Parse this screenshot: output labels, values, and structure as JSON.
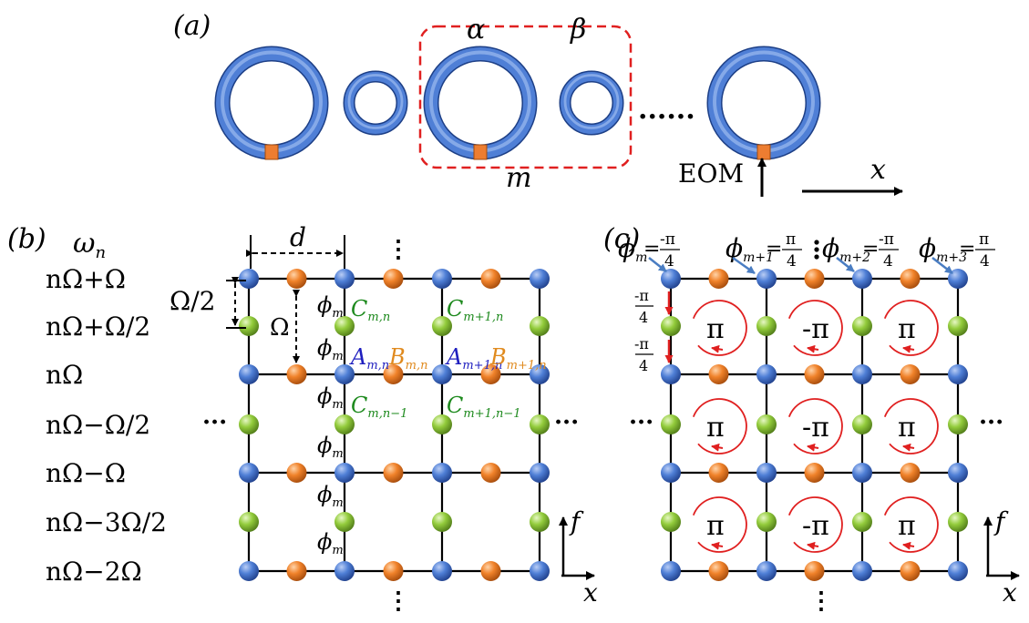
{
  "panel_a": {
    "label": "(a)",
    "alpha": "α",
    "beta": "β",
    "unit_cell": "m",
    "dots": "......",
    "eom": "EOM",
    "axis_x": "x"
  },
  "panel_b": {
    "label": "(b)",
    "freq_header": "ω",
    "freq_header_sub": "n",
    "freq_labels": [
      "nΩ+Ω",
      "nΩ+Ω/2",
      "nΩ",
      "nΩ−Ω/2",
      "nΩ−Ω",
      "nΩ−3Ω/2",
      "nΩ−2Ω"
    ],
    "d": "d",
    "half_omega": "Ω/2",
    "omega": "Ω",
    "phi": "ϕ",
    "phi_sub": "m",
    "C_mn": "C",
    "C_mn_sub": "m,n",
    "C_m1n": "C",
    "C_m1n_sub": "m+1,n",
    "A_mn": "A",
    "A_mn_sub": "m,n",
    "B_mn": "B",
    "B_mn_sub": "m,n",
    "A_m1n": "A",
    "A_m1n_sub": "m+1,n",
    "B_m1n": "B",
    "B_m1n_sub": "m+1,n",
    "C_mn1": "C",
    "C_mn1_sub": "m,n−1",
    "C_m1n1": "C",
    "C_m1n1_sub": "m+1,n−1",
    "ellipsis_h": "···",
    "ellipsis_v": "⋮",
    "axis_f": "f",
    "axis_x": "x"
  },
  "panel_c": {
    "label": "(c)",
    "phases": [
      {
        "sym": "ϕ",
        "sub": "m",
        "eq": "=",
        "sign": "-",
        "num": "π",
        "den": "4"
      },
      {
        "sym": "ϕ",
        "sub": "m+1",
        "eq": "=",
        "sign": "",
        "num": "π",
        "den": "4"
      },
      {
        "sym": "ϕ",
        "sub": "m+2",
        "eq": "=",
        "sign": "-",
        "num": "π",
        "den": "4"
      },
      {
        "sym": "ϕ",
        "sub": "m+3",
        "eq": "=",
        "sign": "",
        "num": "π",
        "den": "4"
      }
    ],
    "side_phase_num": "-π",
    "side_phase_den": "4",
    "flux_row": [
      "π",
      "-π",
      "π"
    ],
    "ellipsis_h": "···",
    "ellipsis_v": "⋮",
    "axis_f": "f",
    "axis_x": "x"
  },
  "colors": {
    "ring": "#4472C4",
    "eom": "#ED7D31",
    "a_site": "#4472C4",
    "b_site": "#ED7D31",
    "c_site": "#8DC63F",
    "dashed_box": "#E02020",
    "red_arrow": "#E02020",
    "label_A": "#1F1FBF",
    "label_B": "#E08A1E",
    "label_C": "#1E8A1E"
  }
}
